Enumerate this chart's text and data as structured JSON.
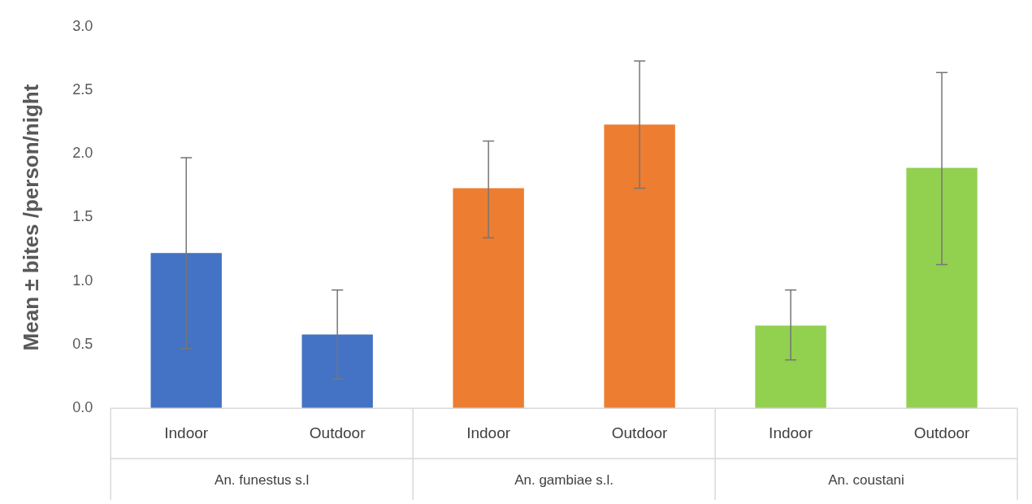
{
  "chart_data": {
    "type": "bar",
    "ylabel": "Mean ± bites /person/night",
    "categories": [
      "Indoor",
      "Outdoor",
      "Indoor",
      "Outdoor",
      "Indoor",
      "Outdoor"
    ],
    "values": [
      1.22,
      0.58,
      1.73,
      2.23,
      0.65,
      1.89
    ],
    "errors": [
      [
        0.47,
        1.97
      ],
      [
        0.23,
        0.93
      ],
      [
        1.34,
        2.1
      ],
      [
        1.73,
        2.73
      ],
      [
        0.38,
        0.93
      ],
      [
        1.13,
        2.64
      ]
    ],
    "colors": [
      "#4472c4",
      "#4472c4",
      "#ed7d31",
      "#ed7d31",
      "#92d050",
      "#92d050"
    ],
    "ylim": [
      0,
      3
    ],
    "yticks": [
      {
        "value": 0,
        "label": "0.0"
      },
      {
        "value": 0.5,
        "label": "0.5"
      },
      {
        "value": 1,
        "label": "1.0"
      },
      {
        "value": 1.5,
        "label": "1.5"
      },
      {
        "value": 2,
        "label": "2.0"
      },
      {
        "value": 2.5,
        "label": "2.5"
      },
      {
        "value": 3,
        "label": "3.0"
      }
    ],
    "annotations": [
      "An. funestus s.l",
      "An. gambiae s.l.",
      "An. coustani"
    ],
    "grid": false,
    "legend": false
  }
}
